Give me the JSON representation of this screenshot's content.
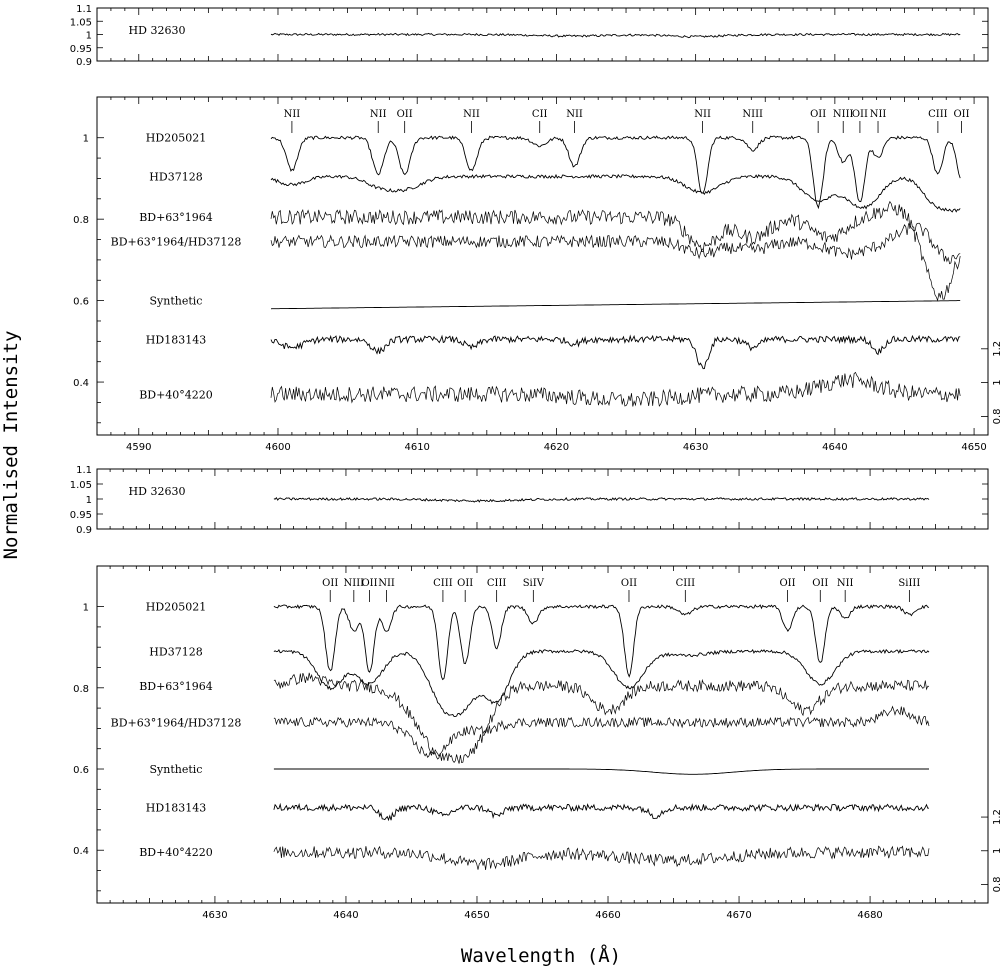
{
  "figure": {
    "xlabel": "Wavelength (Å)",
    "ylabel": "Normalised Intensity"
  },
  "chart_data": [
    {
      "type": "line",
      "panel": "top strip (upper spectrum)",
      "xlim": [
        4587,
        4651
      ],
      "ylim": [
        0.9,
        1.1
      ],
      "yticks": [
        "1.1",
        "1.05",
        "1",
        "0.95",
        "0.9"
      ],
      "series": [
        {
          "name": "HD 32630",
          "level": 1.0,
          "x_start": 4599.5,
          "x_end": 4649.0,
          "noise": 0.004,
          "features": [
            [
              4621,
              0.006,
              2.5
            ],
            [
              4630,
              0.008,
              2.0
            ]
          ]
        }
      ]
    },
    {
      "type": "line",
      "panel": "upper spectrum 4600-4650",
      "xlim": [
        4587,
        4651
      ],
      "ylim": [
        0.27,
        1.1
      ],
      "xticks": [
        "4590",
        "4600",
        "4610",
        "4620",
        "4630",
        "4640",
        "4650"
      ],
      "yticks": [
        "0.4",
        "0.6",
        "0.8",
        "1"
      ],
      "yticks_right": [
        "0.8",
        "1",
        "1.2"
      ],
      "ions": [
        {
          "label": "NII",
          "x": 4601.0
        },
        {
          "label": "NII",
          "x": 4607.2
        },
        {
          "label": "OII",
          "x": 4609.1
        },
        {
          "label": "NII",
          "x": 4613.9
        },
        {
          "label": "CII",
          "x": 4618.8
        },
        {
          "label": "NII",
          "x": 4621.3
        },
        {
          "label": "NII",
          "x": 4630.5
        },
        {
          "label": "NIII",
          "x": 4634.1
        },
        {
          "label": "OII",
          "x": 4638.8
        },
        {
          "label": "NIII",
          "x": 4640.6
        },
        {
          "label": "OII",
          "x": 4641.8
        },
        {
          "label": "NII",
          "x": 4643.1
        },
        {
          "label": "CIII",
          "x": 4647.4
        },
        {
          "label": "OII",
          "x": 4649.1
        }
      ],
      "series": [
        {
          "name": "HD205021",
          "level": 1.0,
          "x_start": 4599.5,
          "x_end": 4649.0,
          "noise": 0.004,
          "features": [
            [
              4601.0,
              0.08,
              0.4
            ],
            [
              4607.2,
              0.09,
              0.4
            ],
            [
              4609.1,
              0.09,
              0.4
            ],
            [
              4613.9,
              0.08,
              0.4
            ],
            [
              4618.8,
              0.02,
              0.5
            ],
            [
              4621.3,
              0.07,
              0.4
            ],
            [
              4630.5,
              0.14,
              0.35
            ],
            [
              4634.1,
              0.03,
              0.4
            ],
            [
              4638.8,
              0.17,
              0.35
            ],
            [
              4640.6,
              0.06,
              0.35
            ],
            [
              4641.8,
              0.16,
              0.35
            ],
            [
              4643.1,
              0.05,
              0.35
            ],
            [
              4647.4,
              0.09,
              0.35
            ],
            [
              4649.1,
              0.1,
              0.35
            ]
          ]
        },
        {
          "name": "HD37128",
          "level": 0.905,
          "x_start": 4599.5,
          "x_end": 4649.0,
          "noise": 0.004,
          "features": [
            [
              4601.0,
              0.02,
              1.0
            ],
            [
              4607.2,
              0.02,
              1.0
            ],
            [
              4609.1,
              0.03,
              1.2
            ],
            [
              4630.5,
              0.04,
              1.2
            ],
            [
              4638.8,
              0.06,
              1.1
            ],
            [
              4641.8,
              0.07,
              1.0
            ],
            [
              4643.1,
              0.02,
              0.8
            ],
            [
              4647.4,
              0.07,
              1.0
            ],
            [
              4649.1,
              0.06,
              0.8
            ]
          ]
        },
        {
          "name": "BD+63°1964",
          "level": 0.805,
          "x_start": 4599.5,
          "x_end": 4649.0,
          "noise": 0.018,
          "features": [
            [
              4630.5,
              0.07,
              1.1
            ],
            [
              4634.1,
              0.05,
              1.2
            ],
            [
              4639.5,
              0.05,
              1.2
            ],
            [
              4645.0,
              -0.03,
              1.5
            ],
            [
              4647.5,
              0.2,
              1.2
            ]
          ]
        },
        {
          "name": "BD+63°1964/HD37128",
          "level": 0.745,
          "x_start": 4599.5,
          "x_end": 4649.0,
          "noise": 0.015,
          "features": [
            [
              4630.5,
              0.03,
              1.2
            ],
            [
              4634.1,
              0.02,
              1.2
            ],
            [
              4641.0,
              0.03,
              1.5
            ],
            [
              4646.0,
              -0.04,
              1.2
            ],
            [
              4648.0,
              0.05,
              1.0
            ]
          ]
        },
        {
          "name": "Synthetic",
          "level": 0.6,
          "x_start": 4599.5,
          "x_end": 4649.0,
          "noise": 0.0,
          "features": []
        },
        {
          "name": "HD183143",
          "level": 0.505,
          "x_start": 4599.5,
          "x_end": 4649.0,
          "noise": 0.008,
          "features": [
            [
              4601.0,
              0.02,
              0.8
            ],
            [
              4607.2,
              0.03,
              0.5
            ],
            [
              4613.9,
              0.02,
              0.5
            ],
            [
              4621.3,
              0.01,
              0.5
            ],
            [
              4630.5,
              0.07,
              0.4
            ],
            [
              4634.1,
              0.02,
              0.5
            ],
            [
              4643.1,
              0.03,
              0.4
            ]
          ]
        },
        {
          "name": "BD+40°4220",
          "level": 0.37,
          "x_start": 4599.5,
          "x_end": 4649.0,
          "noise": 0.02,
          "features": [
            [
              4625,
              0.015,
              3.0
            ],
            [
              4641,
              -0.035,
              2.0
            ]
          ]
        }
      ]
    },
    {
      "type": "line",
      "panel": "middle strip (lower spectrum)",
      "xlim": [
        4621,
        4689
      ],
      "ylim": [
        0.9,
        1.1
      ],
      "yticks": [
        "1.1",
        "1.05",
        "1",
        "0.95",
        "0.9"
      ],
      "series": [
        {
          "name": "HD 32630",
          "level": 1.0,
          "x_start": 4634.5,
          "x_end": 4684.5,
          "noise": 0.004,
          "features": [
            [
              4650,
              0.006,
              3.0
            ]
          ]
        }
      ]
    },
    {
      "type": "line",
      "panel": "lower spectrum 4635-4685",
      "xlim": [
        4621,
        4689
      ],
      "ylim": [
        0.27,
        1.1
      ],
      "xticks": [
        "4630",
        "4640",
        "4650",
        "4660",
        "4670",
        "4680"
      ],
      "yticks": [
        "0.4",
        "0.6",
        "0.8",
        "1"
      ],
      "yticks_right": [
        "0.8",
        "1",
        "1.2"
      ],
      "ions": [
        {
          "label": "OII",
          "x": 4638.8
        },
        {
          "label": "NIII",
          "x": 4640.6
        },
        {
          "label": "OII",
          "x": 4641.8
        },
        {
          "label": "NII",
          "x": 4643.1
        },
        {
          "label": "CIII",
          "x": 4647.4
        },
        {
          "label": "OII",
          "x": 4649.1
        },
        {
          "label": "CIII",
          "x": 4651.5
        },
        {
          "label": "SiIV",
          "x": 4654.3
        },
        {
          "label": "OII",
          "x": 4661.6
        },
        {
          "label": "CIII",
          "x": 4665.9
        },
        {
          "label": "OII",
          "x": 4673.7
        },
        {
          "label": "OII",
          "x": 4676.2
        },
        {
          "label": "NII",
          "x": 4678.1
        },
        {
          "label": "SiIII",
          "x": 4683.0
        }
      ],
      "series": [
        {
          "name": "HD205021",
          "level": 1.0,
          "x_start": 4634.5,
          "x_end": 4684.5,
          "noise": 0.004,
          "features": [
            [
              4638.8,
              0.16,
              0.35
            ],
            [
              4640.6,
              0.06,
              0.35
            ],
            [
              4641.8,
              0.16,
              0.35
            ],
            [
              4643.1,
              0.06,
              0.35
            ],
            [
              4647.4,
              0.18,
              0.35
            ],
            [
              4649.1,
              0.14,
              0.35
            ],
            [
              4651.5,
              0.1,
              0.35
            ],
            [
              4654.3,
              0.04,
              0.4
            ],
            [
              4661.6,
              0.17,
              0.35
            ],
            [
              4665.9,
              0.02,
              0.5
            ],
            [
              4673.7,
              0.06,
              0.35
            ],
            [
              4676.2,
              0.14,
              0.35
            ],
            [
              4678.1,
              0.03,
              0.35
            ],
            [
              4683.0,
              0.02,
              0.4
            ]
          ]
        },
        {
          "name": "HD37128",
          "level": 0.89,
          "x_start": 4634.5,
          "x_end": 4684.5,
          "noise": 0.004,
          "features": [
            [
              4638.8,
              0.09,
              1.0
            ],
            [
              4641.8,
              0.08,
              1.0
            ],
            [
              4647.4,
              0.12,
              1.1
            ],
            [
              4649.1,
              0.1,
              1.0
            ],
            [
              4651.5,
              0.12,
              1.0
            ],
            [
              4661.6,
              0.09,
              1.1
            ],
            [
              4666.0,
              0.01,
              1.5
            ],
            [
              4676.2,
              0.08,
              1.1
            ]
          ]
        },
        {
          "name": "BD+63°1964",
          "level": 0.805,
          "x_start": 4634.5,
          "x_end": 4684.5,
          "noise": 0.014,
          "features": [
            [
              4637.0,
              -0.02,
              1.2
            ],
            [
              4647.5,
              0.17,
              2.0
            ],
            [
              4650.0,
              0.07,
              1.2
            ],
            [
              4660.0,
              0.06,
              1.2
            ],
            [
              4675.0,
              0.06,
              1.2
            ]
          ]
        },
        {
          "name": "BD+63°1964/HD37128",
          "level": 0.715,
          "x_start": 4634.5,
          "x_end": 4684.5,
          "noise": 0.012,
          "features": [
            [
              4646.5,
              0.08,
              1.4
            ],
            [
              4650.5,
              0.02,
              1.0
            ],
            [
              4682.0,
              -0.03,
              1.0
            ]
          ]
        },
        {
          "name": "Synthetic",
          "level": 0.6,
          "x_start": 4634.5,
          "x_end": 4684.5,
          "noise": 0.0,
          "features": [
            [
              4666.5,
              0.013,
              3.0
            ]
          ]
        },
        {
          "name": "HD183143",
          "level": 0.505,
          "x_start": 4634.5,
          "x_end": 4684.5,
          "noise": 0.008,
          "features": [
            [
              4643.1,
              0.03,
              0.5
            ],
            [
              4647.4,
              0.02,
              0.6
            ],
            [
              4651.5,
              0.02,
              0.5
            ],
            [
              4663.6,
              0.02,
              0.5
            ]
          ]
        },
        {
          "name": "BD+40°4220",
          "level": 0.395,
          "x_start": 4634.5,
          "x_end": 4684.5,
          "noise": 0.015,
          "features": [
            [
              4650.5,
              0.03,
              2.5
            ],
            [
              4665.0,
              0.02,
              4.0
            ]
          ]
        }
      ]
    }
  ]
}
